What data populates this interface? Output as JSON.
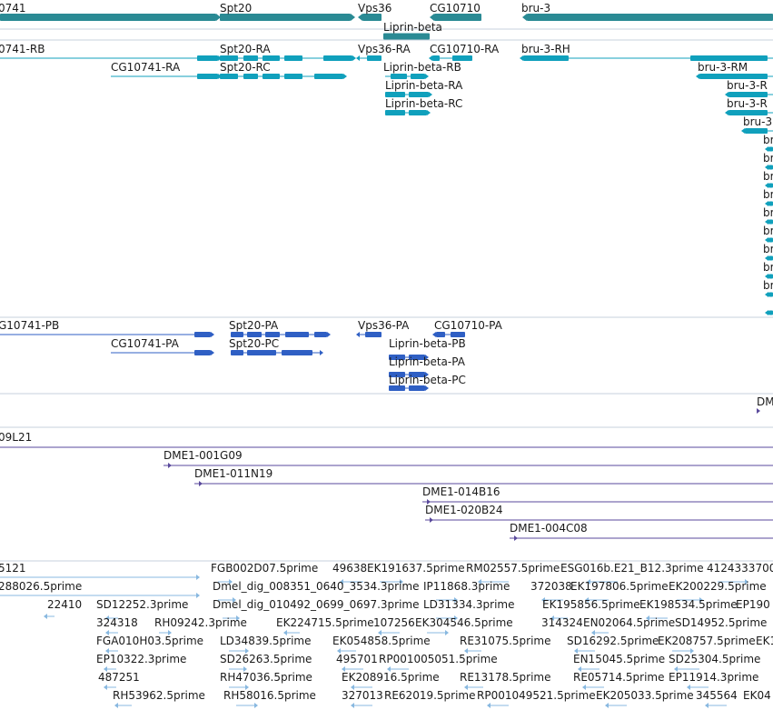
{
  "colors": {
    "gene": "#2a8a94",
    "transcript": "#10a0bc",
    "protein": "#2f5fc4",
    "clone": "#5a4a9c",
    "est": "#88b8e0",
    "separator": "#c7d2dc"
  },
  "tracks": {
    "genes": [
      "0741",
      "Spt20",
      "Vps36",
      "CG10710",
      "bru-3",
      "Liprin-beta"
    ],
    "transcripts": [
      "0741-RB",
      "Spt20-RA",
      "Vps36-RA",
      "CG10710-RA",
      "bru-3-RH",
      "CG10741-RA",
      "Spt20-RC",
      "Liprin-beta-RB",
      "bru-3-RM",
      "Liprin-beta-RA",
      "bru-3-R",
      "Liprin-beta-RC",
      "bru-3-R",
      "bru-3",
      "bru",
      "bru",
      "bru",
      "bru",
      "bru",
      "bru",
      "bru",
      "bru",
      "bru"
    ],
    "proteins": [
      "G10741-PB",
      "Spt20-PA",
      "Vps36-PA",
      "CG10710-PA",
      "CG10741-PA",
      "Spt20-PC",
      "Liprin-beta-PB",
      "Liprin-beta-PA",
      "Liprin-beta-PC"
    ],
    "dme_single": "DM",
    "clones": [
      "09L21",
      "DME1-001G09",
      "DME1-011N19",
      "DME1-014B16",
      "DME1-020B24",
      "DME1-004C08"
    ],
    "ests": [
      "5121",
      "FGB002D07.5prime",
      "49638",
      "EK191637.5prime",
      "RM02557.5prime",
      "ESG016b.E21_B12.3prime",
      "4124333700",
      "288026.5prime",
      "Dmel_dig_008351_0640_3534.3prime",
      "IP11868.3prime",
      "372038",
      "EK197806.5prime",
      "EK200229.5prime",
      "22410",
      "SD12252.3prime",
      "Dmel_dig_010492_0699_0697.3prime",
      "LD31334.3prime",
      "EK195856.5prime",
      "EK198534.5prime",
      "EP190",
      "324318",
      "RH09242.3prime",
      "EK224715.5prime",
      "107256",
      "EK304546.5prime",
      "314324",
      "EN02064.5prime",
      "SD14952.5prime",
      "FGA010H03.5prime",
      "LD34839.5prime",
      "EK054858.5prime",
      "RE31075.5prime",
      "SD16292.5prime",
      "EK208757.5prime",
      "EK1",
      "EP10322.3prime",
      "SD26263.5prime",
      "495701",
      "RP001005051.5prime",
      "EN15045.5prime",
      "SD25304.5prime",
      "487251",
      "RH47036.5prime",
      "EK208916.5prime",
      "RE13178.5prime",
      "RE05714.5prime",
      "EP11914.3prime",
      "RH53962.5prime",
      "RH58016.5prime",
      "327013",
      "RE62019.5prime",
      "RP001049521.5prime",
      "EK205033.5prime",
      "345564",
      "EK04"
    ]
  }
}
